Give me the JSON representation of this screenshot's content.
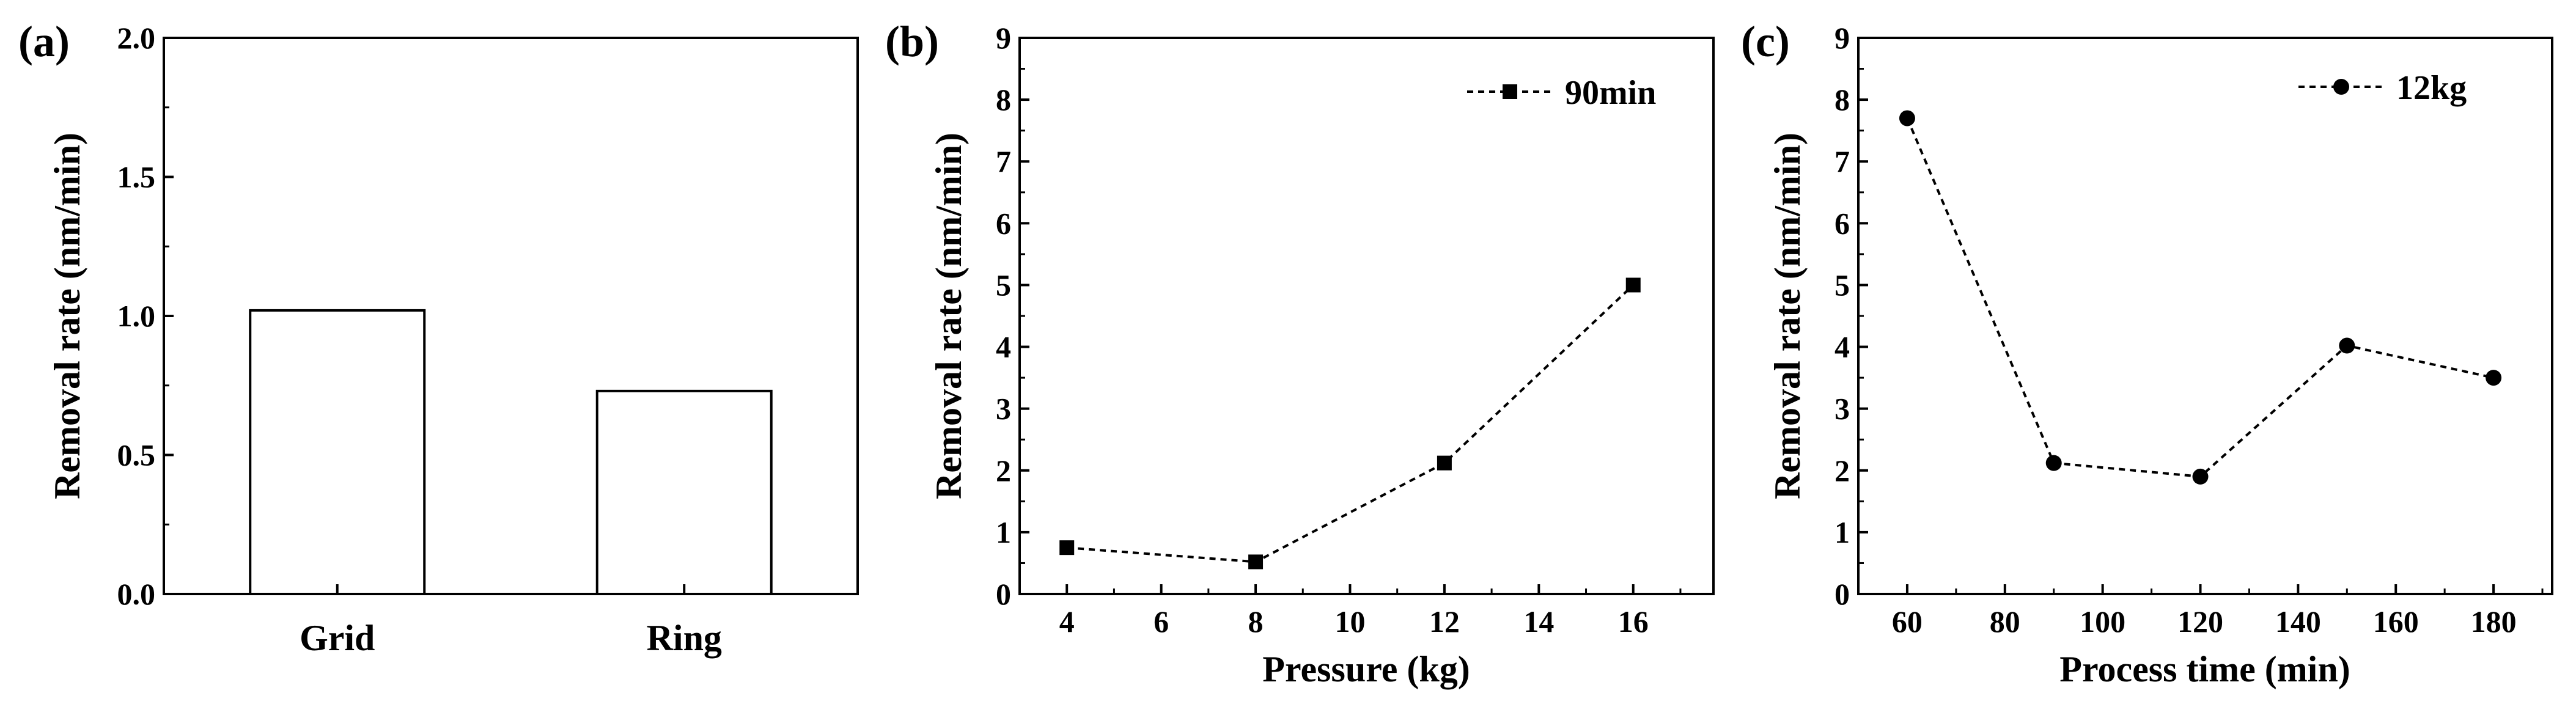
{
  "chart_data": [
    {
      "panel": "(a)",
      "type": "bar",
      "title": "",
      "xlabel": "",
      "ylabel": "Removal rate (nm/min)",
      "categories": [
        "Grid",
        "Ring"
      ],
      "values": [
        1.02,
        0.73
      ],
      "ylim": [
        0,
        2.0
      ],
      "yticks": [
        "0.0",
        "0.5",
        "1.0",
        "1.5",
        "2.0"
      ],
      "grid": false
    },
    {
      "panel": "(b)",
      "type": "line",
      "title": "",
      "xlabel": "Pressure (kg)",
      "ylabel": "Removal rate (nm/min)",
      "series": [
        {
          "name": "90min",
          "marker": "square",
          "x": [
            4,
            8,
            12,
            16
          ],
          "values": [
            0.75,
            0.52,
            2.12,
            5.0
          ]
        }
      ],
      "xlim": [
        3,
        17.7
      ],
      "ylim": [
        0,
        9
      ],
      "xticks": [
        "4",
        "6",
        "8",
        "10",
        "12",
        "14",
        "16"
      ],
      "yticks": [
        "0",
        "1",
        "2",
        "3",
        "4",
        "5",
        "6",
        "7",
        "8",
        "9"
      ],
      "legend_position": "top-right",
      "grid": false
    },
    {
      "panel": "(c)",
      "type": "line",
      "title": "",
      "xlabel": "Process time (min)",
      "ylabel": "Removal rate (nm/min)",
      "series": [
        {
          "name": "12kg",
          "marker": "circle",
          "x": [
            60,
            90,
            120,
            150,
            180
          ],
          "values": [
            7.7,
            2.12,
            1.9,
            4.02,
            3.5
          ]
        }
      ],
      "xlim": [
        50,
        192
      ],
      "ylim": [
        0,
        9
      ],
      "xticks": [
        "60",
        "80",
        "100",
        "120",
        "140",
        "160",
        "180"
      ],
      "yticks": [
        "0",
        "1",
        "2",
        "3",
        "4",
        "5",
        "6",
        "7",
        "8",
        "9"
      ],
      "legend_position": "top-right",
      "grid": false
    }
  ]
}
